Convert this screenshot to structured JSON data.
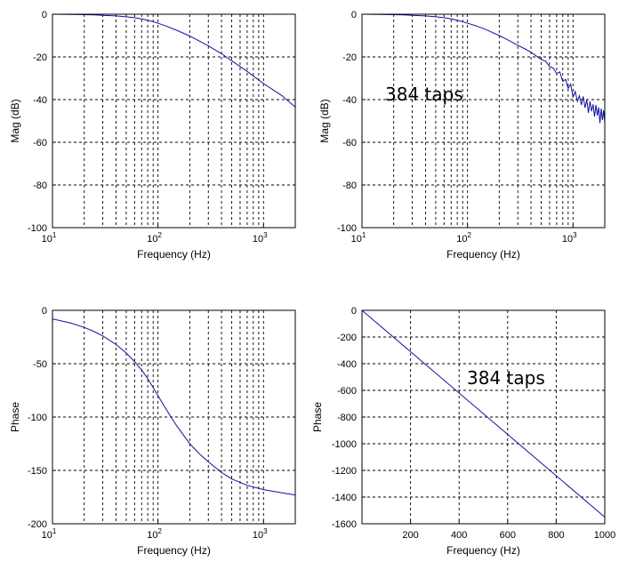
{
  "chart_data": [
    {
      "id": "mag_left",
      "type": "line",
      "title": "",
      "xlabel": "Frequency (Hz)",
      "ylabel": "Mag (dB)",
      "xscale": "log",
      "xlim": [
        10,
        2000
      ],
      "ylim": [
        -100,
        0
      ],
      "yticks": [
        0,
        -20,
        -40,
        -60,
        -80,
        -100
      ],
      "xticks": [
        10,
        100,
        1000
      ],
      "xtick_labels": [
        [
          "10",
          "1"
        ],
        [
          "10",
          "2"
        ],
        [
          "10",
          "3"
        ]
      ],
      "grid": true,
      "annotation": "",
      "series": [
        {
          "x": [
            10,
            15,
            20,
            25,
            30,
            40,
            50,
            60,
            70,
            80,
            100,
            120,
            150,
            200,
            300,
            400,
            500,
            700,
            1000,
            1500,
            2000
          ],
          "y": [
            0,
            -0.1,
            -0.2,
            -0.3,
            -0.5,
            -0.8,
            -1.2,
            -1.6,
            -2.2,
            -2.8,
            -4.2,
            -5.6,
            -7.5,
            -10.2,
            -14.8,
            -18.5,
            -21.8,
            -26.8,
            -32.5,
            -38.2,
            -43.5
          ],
          "color": "#1010a0"
        }
      ]
    },
    {
      "id": "mag_right",
      "type": "line",
      "title": "",
      "xlabel": "Frequency (Hz)",
      "ylabel": "Mag (dB)",
      "xscale": "log",
      "xlim": [
        10,
        2000
      ],
      "ylim": [
        -100,
        0
      ],
      "yticks": [
        0,
        -20,
        -40,
        -60,
        -80,
        -100
      ],
      "xticks": [
        10,
        100,
        1000
      ],
      "xtick_labels": [
        [
          "10",
          "1"
        ],
        [
          "10",
          "2"
        ],
        [
          "10",
          "3"
        ]
      ],
      "grid": true,
      "annotation": "384 taps",
      "series": [
        {
          "x": [
            10,
            15,
            20,
            25,
            30,
            40,
            50,
            60,
            70,
            80,
            100,
            120,
            150,
            200,
            250,
            300,
            350,
            400,
            450,
            500,
            550,
            600,
            650,
            700,
            750,
            800,
            850,
            900,
            950,
            1000,
            1050,
            1100,
            1150,
            1200,
            1250,
            1300,
            1350,
            1400,
            1450,
            1500,
            1550,
            1600,
            1650,
            1700,
            1750,
            1800,
            1850,
            1900,
            1950,
            2000
          ],
          "y": [
            0,
            -0.1,
            -0.2,
            -0.3,
            -0.5,
            -0.8,
            -1.2,
            -1.6,
            -2.2,
            -2.8,
            -4.2,
            -5.4,
            -7.2,
            -10.0,
            -12.4,
            -14.6,
            -16.2,
            -17.8,
            -19.6,
            -21.2,
            -22.0,
            -24.5,
            -25.2,
            -27.8,
            -27.0,
            -31.5,
            -30.5,
            -34.8,
            -32.8,
            -38.8,
            -36.2,
            -40.8,
            -38.2,
            -42.5,
            -38.5,
            -43.8,
            -40.2,
            -46.2,
            -40.8,
            -45.5,
            -42.2,
            -48.0,
            -42.5,
            -47.5,
            -43.6,
            -51.0,
            -44.2,
            -49.6,
            -45.0,
            -50.8
          ],
          "color": "#1010a0"
        }
      ]
    },
    {
      "id": "phase_left",
      "type": "line",
      "title": "",
      "xlabel": "Frequency (Hz)",
      "ylabel": "Phase",
      "xscale": "log",
      "xlim": [
        10,
        2000
      ],
      "ylim": [
        -200,
        0
      ],
      "yticks": [
        0,
        -50,
        -100,
        -150,
        -200
      ],
      "xticks": [
        10,
        100,
        1000
      ],
      "xtick_labels": [
        [
          "10",
          "1"
        ],
        [
          "10",
          "2"
        ],
        [
          "10",
          "3"
        ]
      ],
      "grid": true,
      "annotation": "",
      "series": [
        {
          "x": [
            10,
            15,
            20,
            25,
            30,
            40,
            50,
            60,
            70,
            80,
            100,
            120,
            150,
            200,
            250,
            300,
            400,
            500,
            700,
            1000,
            1500,
            2000
          ],
          "y": [
            -8,
            -12,
            -16,
            -20,
            -24,
            -32,
            -40,
            -48,
            -56,
            -64,
            -80,
            -93,
            -108,
            -125,
            -135,
            -142,
            -152,
            -158,
            -164,
            -168,
            -171,
            -173
          ],
          "color": "#1010a0"
        }
      ]
    },
    {
      "id": "phase_right",
      "type": "line",
      "title": "",
      "xlabel": "Frequency (Hz)",
      "ylabel": "Phase",
      "xscale": "linear",
      "xlim": [
        0,
        1000
      ],
      "ylim": [
        -1600,
        0
      ],
      "yticks": [
        0,
        -200,
        -400,
        -600,
        -800,
        -1000,
        -1200,
        -1400,
        -1600
      ],
      "xticks": [
        200,
        400,
        600,
        800,
        1000
      ],
      "grid": true,
      "annotation": "384 taps",
      "series": [
        {
          "x": [
            0,
            1000
          ],
          "y": [
            0,
            -1550
          ],
          "color": "#1010a0"
        }
      ]
    }
  ]
}
